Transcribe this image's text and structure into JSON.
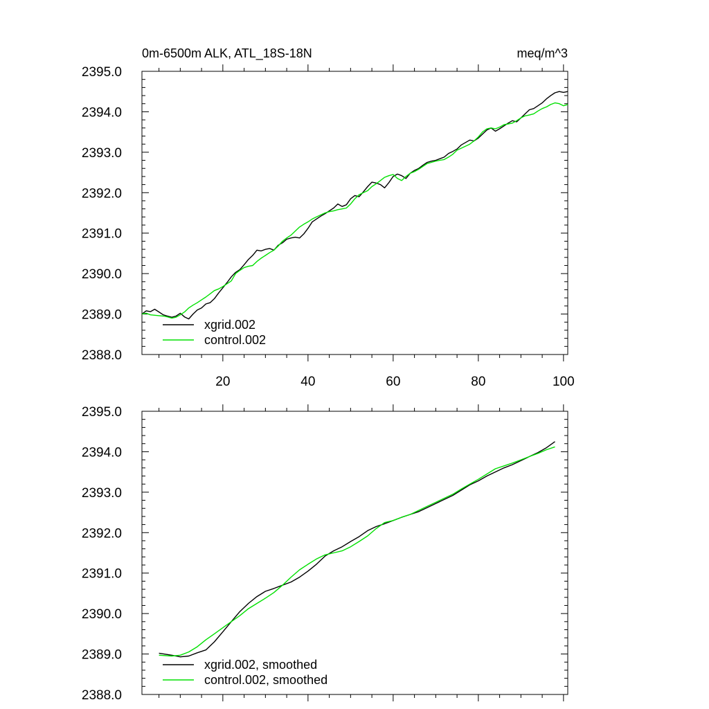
{
  "colors": {
    "xgrid": "#000000",
    "control": "#00e000"
  },
  "chart_data": [
    {
      "type": "line",
      "title_left": "0m-6500m ALK, ATL_18S-18N",
      "title_right": "meq/m^3",
      "xlim": [
        1,
        101
      ],
      "ylim": [
        2388.0,
        2395.0
      ],
      "xticks": [
        20,
        40,
        60,
        80,
        100
      ],
      "xtick_labels": [
        "20",
        "40",
        "60",
        "80",
        "100"
      ],
      "show_xtick_labels": true,
      "yticks": [
        2388.0,
        2389.0,
        2390.0,
        2391.0,
        2392.0,
        2393.0,
        2394.0,
        2395.0
      ],
      "ytick_labels": [
        "2388.0",
        "2389.0",
        "2390.0",
        "2391.0",
        "2392.0",
        "2393.0",
        "2394.0",
        "2395.0"
      ],
      "legend_position": "bottom-left",
      "series": [
        {
          "name": "xgrid.002",
          "color": "#000000",
          "x": [
            1,
            2,
            3,
            4,
            5,
            6,
            7,
            8,
            9,
            10,
            11,
            12,
            13,
            14,
            15,
            16,
            17,
            18,
            19,
            20,
            21,
            22,
            23,
            24,
            25,
            26,
            27,
            28,
            29,
            30,
            31,
            32,
            33,
            34,
            35,
            36,
            37,
            38,
            39,
            40,
            41,
            42,
            43,
            44,
            45,
            46,
            47,
            48,
            49,
            50,
            51,
            52,
            53,
            54,
            55,
            56,
            57,
            58,
            59,
            60,
            61,
            62,
            63,
            64,
            65,
            66,
            67,
            68,
            69,
            70,
            71,
            72,
            73,
            74,
            75,
            76,
            77,
            78,
            79,
            80,
            81,
            82,
            83,
            84,
            85,
            86,
            87,
            88,
            89,
            90,
            91,
            92,
            93,
            94,
            95,
            96,
            97,
            98,
            99,
            100,
            101
          ],
          "y": [
            2389.0,
            2389.08,
            2389.06,
            2389.12,
            2389.05,
            2388.98,
            2388.95,
            2388.92,
            2388.95,
            2389.02,
            2388.93,
            2388.88,
            2389.0,
            2389.1,
            2389.15,
            2389.25,
            2389.28,
            2389.38,
            2389.52,
            2389.65,
            2389.78,
            2389.92,
            2390.03,
            2390.1,
            2390.22,
            2390.35,
            2390.45,
            2390.58,
            2390.56,
            2390.6,
            2390.62,
            2390.58,
            2390.7,
            2390.76,
            2390.85,
            2390.88,
            2390.9,
            2390.88,
            2390.98,
            2391.12,
            2391.28,
            2391.35,
            2391.42,
            2391.48,
            2391.55,
            2391.62,
            2391.72,
            2391.66,
            2391.7,
            2391.85,
            2391.93,
            2391.9,
            2392.02,
            2392.15,
            2392.26,
            2392.24,
            2392.2,
            2392.12,
            2392.25,
            2392.4,
            2392.46,
            2392.42,
            2392.35,
            2392.48,
            2392.55,
            2392.6,
            2392.68,
            2392.75,
            2392.78,
            2392.8,
            2392.84,
            2392.88,
            2392.97,
            2393.02,
            2393.08,
            2393.18,
            2393.24,
            2393.3,
            2393.28,
            2393.35,
            2393.45,
            2393.55,
            2393.6,
            2393.52,
            2393.58,
            2393.65,
            2393.72,
            2393.78,
            2393.75,
            2393.85,
            2393.95,
            2394.05,
            2394.08,
            2394.15,
            2394.22,
            2394.32,
            2394.4,
            2394.47,
            2394.5,
            2394.48,
            2394.5
          ]
        },
        {
          "name": "control.002",
          "color": "#00e000",
          "x": [
            1,
            2,
            3,
            4,
            5,
            6,
            7,
            8,
            9,
            10,
            11,
            12,
            13,
            14,
            15,
            16,
            17,
            18,
            19,
            20,
            21,
            22,
            23,
            24,
            25,
            26,
            27,
            28,
            29,
            30,
            31,
            32,
            33,
            34,
            35,
            36,
            37,
            38,
            39,
            40,
            41,
            42,
            43,
            44,
            45,
            46,
            47,
            48,
            49,
            50,
            51,
            52,
            53,
            54,
            55,
            56,
            57,
            58,
            59,
            60,
            61,
            62,
            63,
            64,
            65,
            66,
            67,
            68,
            69,
            70,
            71,
            72,
            73,
            74,
            75,
            76,
            77,
            78,
            79,
            80,
            81,
            82,
            83,
            84,
            85,
            86,
            87,
            88,
            89,
            90,
            91,
            92,
            93,
            94,
            95,
            96,
            97,
            98,
            99,
            100,
            101
          ],
          "y": [
            2389.0,
            2389.02,
            2388.98,
            2388.97,
            2388.96,
            2388.95,
            2388.93,
            2388.9,
            2388.92,
            2388.98,
            2389.05,
            2389.15,
            2389.22,
            2389.28,
            2389.35,
            2389.42,
            2389.5,
            2389.58,
            2389.62,
            2389.68,
            2389.75,
            2389.82,
            2390.0,
            2390.08,
            2390.15,
            2390.18,
            2390.2,
            2390.3,
            2390.38,
            2390.45,
            2390.52,
            2390.58,
            2390.68,
            2390.8,
            2390.88,
            2390.95,
            2391.05,
            2391.15,
            2391.22,
            2391.28,
            2391.35,
            2391.4,
            2391.45,
            2391.5,
            2391.53,
            2391.55,
            2391.58,
            2391.6,
            2391.62,
            2391.72,
            2391.85,
            2391.95,
            2392.0,
            2392.05,
            2392.15,
            2392.22,
            2392.3,
            2392.38,
            2392.42,
            2392.45,
            2392.35,
            2392.3,
            2392.4,
            2392.48,
            2392.52,
            2392.58,
            2392.65,
            2392.72,
            2392.75,
            2392.78,
            2392.8,
            2392.82,
            2392.88,
            2392.95,
            2393.05,
            2393.1,
            2393.15,
            2393.2,
            2393.28,
            2393.38,
            2393.5,
            2393.58,
            2393.6,
            2393.58,
            2393.62,
            2393.68,
            2393.7,
            2393.72,
            2393.78,
            2393.85,
            2393.9,
            2393.92,
            2393.95,
            2394.02,
            2394.08,
            2394.12,
            2394.18,
            2394.22,
            2394.2,
            2394.15,
            2394.18
          ]
        }
      ]
    },
    {
      "type": "line",
      "title_left": "",
      "title_right": "",
      "xlim": [
        1,
        101
      ],
      "ylim": [
        2388.0,
        2395.0
      ],
      "xticks": [
        20,
        40,
        60,
        80,
        100
      ],
      "xtick_labels": [
        "20",
        "40",
        "60",
        "80",
        "100"
      ],
      "show_xtick_labels": false,
      "yticks": [
        2388.0,
        2389.0,
        2390.0,
        2391.0,
        2392.0,
        2393.0,
        2394.0,
        2395.0
      ],
      "ytick_labels": [
        "2388.0",
        "2389.0",
        "2390.0",
        "2391.0",
        "2392.0",
        "2393.0",
        "2394.0",
        "2395.0"
      ],
      "legend_position": "bottom-left",
      "series": [
        {
          "name": "xgrid.002, smoothed",
          "color": "#000000",
          "x": [
            5,
            8,
            10,
            12,
            14,
            16,
            18,
            20,
            22,
            24,
            26,
            28,
            30,
            32,
            34,
            36,
            38,
            40,
            42,
            44,
            46,
            48,
            50,
            52,
            54,
            56,
            58,
            60,
            62,
            64,
            66,
            68,
            70,
            72,
            74,
            76,
            78,
            80,
            82,
            84,
            86,
            88,
            90,
            92,
            94,
            96,
            98
          ],
          "y": [
            2389.02,
            2388.97,
            2388.93,
            2388.95,
            2389.03,
            2389.1,
            2389.3,
            2389.55,
            2389.8,
            2390.05,
            2390.25,
            2390.42,
            2390.55,
            2390.62,
            2390.7,
            2390.78,
            2390.9,
            2391.05,
            2391.22,
            2391.42,
            2391.55,
            2391.65,
            2391.78,
            2391.9,
            2392.05,
            2392.15,
            2392.22,
            2392.3,
            2392.38,
            2392.45,
            2392.52,
            2392.62,
            2392.72,
            2392.82,
            2392.92,
            2393.05,
            2393.18,
            2393.28,
            2393.4,
            2393.5,
            2393.6,
            2393.68,
            2393.78,
            2393.88,
            2393.98,
            2394.1,
            2394.25
          ]
        },
        {
          "name": "control.002, smoothed",
          "color": "#00e000",
          "x": [
            5,
            8,
            10,
            12,
            14,
            16,
            18,
            20,
            22,
            24,
            26,
            28,
            30,
            32,
            34,
            36,
            38,
            40,
            42,
            44,
            46,
            48,
            50,
            52,
            54,
            56,
            58,
            60,
            62,
            64,
            66,
            68,
            70,
            72,
            74,
            76,
            78,
            80,
            82,
            84,
            86,
            88,
            90,
            92,
            94,
            96,
            98
          ],
          "y": [
            2388.97,
            2388.95,
            2388.97,
            2389.05,
            2389.18,
            2389.35,
            2389.5,
            2389.65,
            2389.8,
            2389.95,
            2390.12,
            2390.25,
            2390.38,
            2390.52,
            2390.7,
            2390.9,
            2391.08,
            2391.22,
            2391.35,
            2391.45,
            2391.5,
            2391.55,
            2391.65,
            2391.78,
            2391.92,
            2392.1,
            2392.25,
            2392.3,
            2392.38,
            2392.45,
            2392.55,
            2392.65,
            2392.75,
            2392.85,
            2392.95,
            2393.08,
            2393.2,
            2393.32,
            2393.45,
            2393.58,
            2393.65,
            2393.72,
            2393.8,
            2393.88,
            2393.96,
            2394.05,
            2394.12
          ]
        }
      ]
    }
  ]
}
